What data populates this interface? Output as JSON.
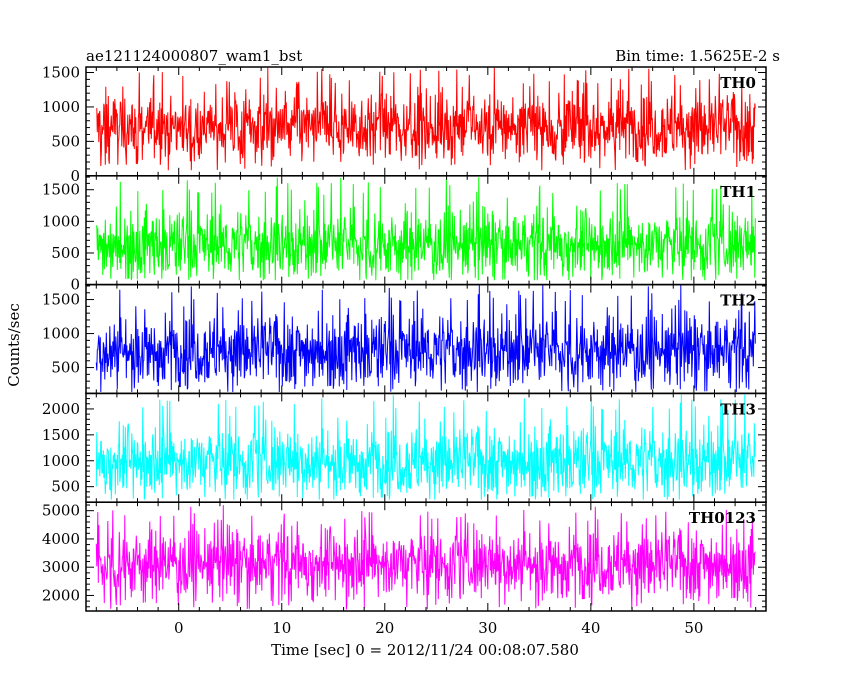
{
  "chart_data": {
    "type": "line",
    "title_left": "ae121124000807_wam1_bst",
    "title_right": "Bin time: 1.5625E-2 s",
    "xlabel": "Time [sec] 0 = 2012/11/24 00:08:07.580",
    "ylabel": "Counts/sec",
    "xlim": [
      -9,
      57
    ],
    "x_data_range": [
      -8,
      56
    ],
    "xticks": [
      0,
      10,
      20,
      30,
      40,
      50
    ],
    "grid": false,
    "panels": [
      {
        "name": "TH0",
        "color": "#ff0000",
        "ylim": [
          0,
          1580
        ],
        "yticks": [
          0,
          500,
          1000,
          1500
        ],
        "signal_mean": 720,
        "signal_low": 80,
        "signal_high": 1580
      },
      {
        "name": "TH1",
        "color": "#00ff00",
        "ylim": [
          0,
          1720
        ],
        "yticks": [
          0,
          500,
          1000,
          1500
        ],
        "signal_mean": 640,
        "signal_low": 70,
        "signal_high": 1700
      },
      {
        "name": "TH2",
        "color": "#0000ff",
        "ylim": [
          120,
          1720
        ],
        "yticks": [
          500,
          1000,
          1500
        ],
        "signal_mean": 760,
        "signal_low": 140,
        "signal_high": 1720
      },
      {
        "name": "TH3",
        "color": "#00ffff",
        "ylim": [
          200,
          2300
        ],
        "yticks": [
          500,
          1000,
          1500,
          2000
        ],
        "signal_mean": 1000,
        "signal_low": 250,
        "signal_high": 2300
      },
      {
        "name": "TH0123",
        "color": "#ff00ff",
        "ylim": [
          1450,
          5300
        ],
        "yticks": [
          2000,
          3000,
          4000,
          5000
        ],
        "signal_mean": 3150,
        "signal_low": 1500,
        "signal_high": 5200
      }
    ]
  }
}
